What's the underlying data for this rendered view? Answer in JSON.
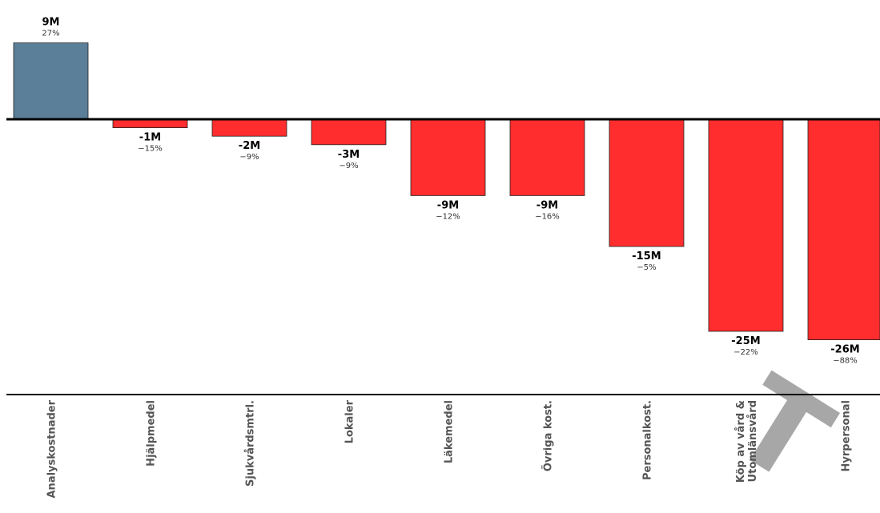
{
  "chart_data": {
    "type": "bar",
    "categories": [
      "Analyskostnader",
      "Hjälpmedel",
      "Sjukvårdsmtrl.",
      "Lokaler",
      "Läkemedel",
      "Övriga kost.",
      "Personalkost.",
      "Köp av vård & Utomlänsvård",
      "Hyrpersonal"
    ],
    "category_lines": [
      [
        "Analyskostnader"
      ],
      [
        "Hjälpmedel"
      ],
      [
        "Sjukvårdsmtrl."
      ],
      [
        "Lokaler"
      ],
      [
        "Läkemedel"
      ],
      [
        "Övriga kost."
      ],
      [
        "Personalkost."
      ],
      [
        "Köp av vård &",
        "Utomlänsvård"
      ],
      [
        "Hyrpersonal"
      ]
    ],
    "values": [
      9,
      -1,
      -2,
      -3,
      -9,
      -9,
      -15,
      -25,
      -26
    ],
    "value_labels": [
      "9M",
      "-1M",
      "-2M",
      "-3M",
      "-9M",
      "-9M",
      "-15M",
      "-25M",
      "-26M"
    ],
    "percent_labels": [
      "27%",
      "−15%",
      "−9%",
      "−9%",
      "−12%",
      "−16%",
      "−5%",
      "−22%",
      "−88%"
    ],
    "unit": "M",
    "colors": {
      "positive": "#5b7f99",
      "negative": "#ff2d2d"
    },
    "grid": false,
    "legend": "none"
  },
  "watermark": "T"
}
